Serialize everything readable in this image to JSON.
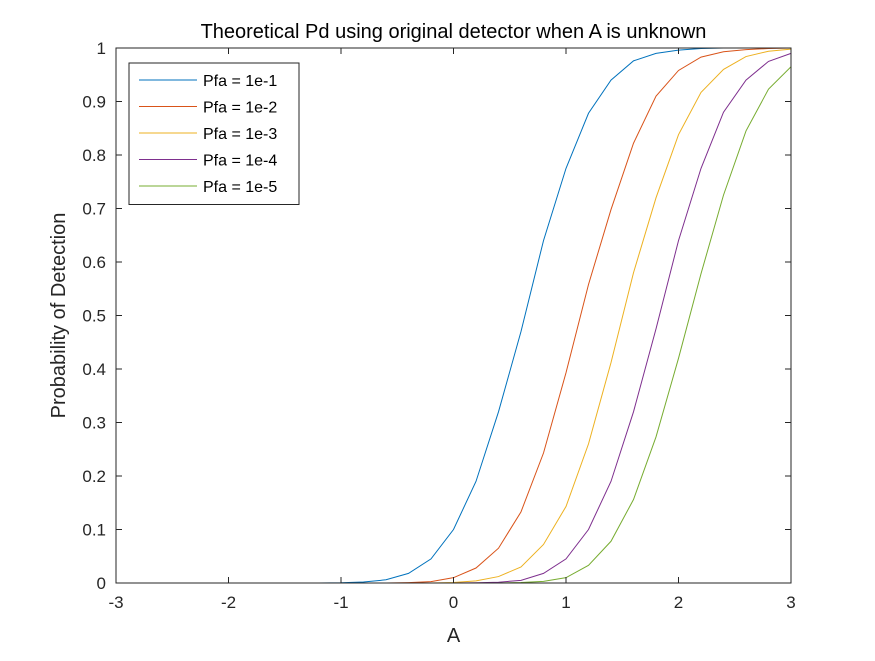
{
  "chart_data": {
    "type": "line",
    "title": "Theoretical Pd using original detector when A is unknown",
    "xlabel": "A",
    "ylabel": "Probability of Detection",
    "xlim": [
      -3,
      3
    ],
    "ylim": [
      0,
      1
    ],
    "xticks": [
      -3,
      -2,
      -1,
      0,
      1,
      2,
      3
    ],
    "xtick_labels": [
      "-3",
      "-2",
      "-1",
      "0",
      "1",
      "2",
      "3"
    ],
    "yticks": [
      0,
      0.1,
      0.2,
      0.3,
      0.4,
      0.5,
      0.6,
      0.7,
      0.8,
      0.9,
      1
    ],
    "ytick_labels": [
      "0",
      "0.1",
      "0.2",
      "0.3",
      "0.4",
      "0.5",
      "0.6",
      "0.7",
      "0.8",
      "0.9",
      "1"
    ],
    "grid": false,
    "legend_position": "top-left",
    "x": [
      -2.8,
      -2.6,
      -2.4,
      -2.2,
      -2.0,
      -1.8,
      -1.6,
      -1.4,
      -1.2,
      -1.0,
      -0.8,
      -0.6,
      -0.4,
      -0.2,
      0.0,
      0.2,
      0.4,
      0.6,
      0.8,
      1.0,
      1.2,
      1.4,
      1.6,
      1.8,
      2.0,
      2.2,
      2.4,
      2.6,
      2.8,
      3.0
    ],
    "series": [
      {
        "name": "Pfa = 1e-1",
        "color": "#0072BD",
        "values": [
          0,
          0,
          0,
          0,
          0,
          0,
          0,
          0,
          0,
          0.0004,
          0.0018,
          0.006,
          0.018,
          0.045,
          0.1,
          0.19,
          0.32,
          0.47,
          0.64,
          0.775,
          0.878,
          0.94,
          0.976,
          0.99,
          0.996,
          0.999,
          1.0,
          1.0,
          1.0,
          1.0
        ]
      },
      {
        "name": "Pfa = 1e-2",
        "color": "#D95319",
        "values": [
          0,
          0,
          0,
          0,
          0,
          0,
          0,
          0,
          0,
          0,
          0,
          0,
          0.0008,
          0.0025,
          0.01,
          0.028,
          0.065,
          0.133,
          0.243,
          0.393,
          0.558,
          0.698,
          0.822,
          0.91,
          0.958,
          0.983,
          0.993,
          0.997,
          0.999,
          1.0
        ]
      },
      {
        "name": "Pfa = 1e-3",
        "color": "#EDB120",
        "values": [
          0,
          0,
          0,
          0,
          0,
          0,
          0,
          0,
          0,
          0,
          0,
          0,
          0,
          0,
          0.001,
          0.004,
          0.012,
          0.03,
          0.072,
          0.143,
          0.26,
          0.412,
          0.58,
          0.72,
          0.838,
          0.917,
          0.96,
          0.984,
          0.994,
          0.998
        ]
      },
      {
        "name": "Pfa = 1e-4",
        "color": "#7E2F8E",
        "values": [
          0,
          0,
          0,
          0,
          0,
          0,
          0,
          0,
          0,
          0,
          0,
          0,
          0,
          0,
          0,
          0.0005,
          0.0015,
          0.005,
          0.018,
          0.045,
          0.1,
          0.19,
          0.32,
          0.475,
          0.64,
          0.775,
          0.88,
          0.94,
          0.975,
          0.99
        ]
      },
      {
        "name": "Pfa = 1e-5",
        "color": "#77AC30",
        "values": [
          0,
          0,
          0,
          0,
          0,
          0,
          0,
          0,
          0,
          0,
          0,
          0,
          0,
          0,
          0,
          0,
          0,
          0.001,
          0.003,
          0.01,
          0.033,
          0.078,
          0.156,
          0.273,
          0.42,
          0.578,
          0.725,
          0.845,
          0.923,
          0.965
        ]
      }
    ]
  }
}
